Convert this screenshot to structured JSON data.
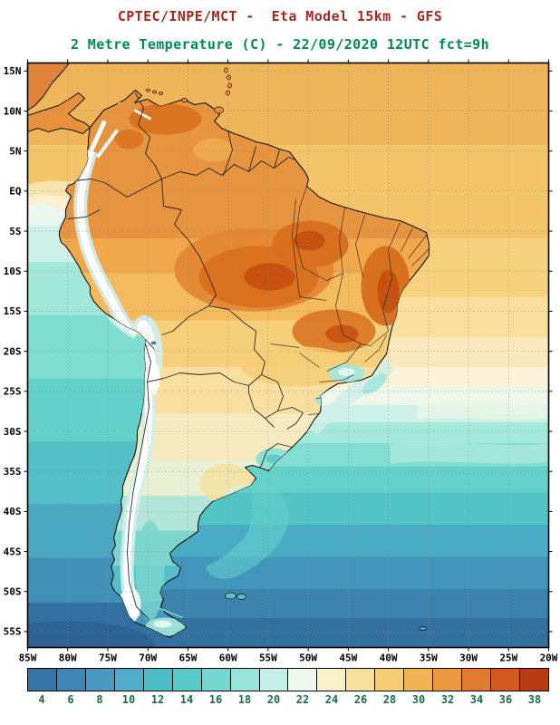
{
  "header": {
    "title": "CPTEC/INPE/MCT -  Eta Model 15km - GFS",
    "subtitle": "2 Metre Temperature (C) - 22/09/2020 12UTC fct=9h",
    "title_color": "#a32a20",
    "subtitle_color": "#00875f"
  },
  "map": {
    "lat_labels": [
      "15N",
      "10N",
      "5N",
      "EQ",
      "5S",
      "10S",
      "15S",
      "20S",
      "25S",
      "30S",
      "35S",
      "40S",
      "45S",
      "50S",
      "55S"
    ],
    "lon_labels": [
      "85W",
      "80W",
      "75W",
      "70W",
      "65W",
      "60W",
      "55W",
      "50W",
      "45W",
      "40W",
      "35W",
      "30W",
      "25W",
      "20W"
    ],
    "grid_color": "#8a8a8a"
  },
  "colorbar": {
    "labels": [
      "4",
      "6",
      "8",
      "10",
      "12",
      "14",
      "16",
      "18",
      "20",
      "22",
      "24",
      "26",
      "28",
      "30",
      "32",
      "34",
      "36",
      "38"
    ],
    "colors": [
      "#3573a8",
      "#3f86b6",
      "#4a99c2",
      "#52abc8",
      "#4cbcc6",
      "#58cbc8",
      "#74d8d0",
      "#98e4da",
      "#c4efe6",
      "#eef8ec",
      "#f9efc8",
      "#f8e09c",
      "#f5cd74",
      "#f1b452",
      "#ea9940",
      "#e07c30",
      "#d25a22",
      "#b93b16"
    ],
    "label_color": "#1b6b57"
  }
}
